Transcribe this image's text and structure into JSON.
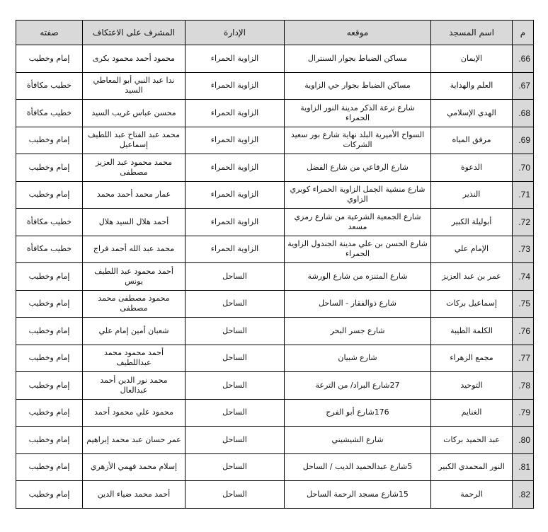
{
  "headers": [
    "م",
    "اسم المسجد",
    "موقعه",
    "الإدارة",
    "المشرف على الاعتكاف",
    "صفته"
  ],
  "rows": [
    {
      "num": "66.",
      "mosque": "الإيمان",
      "location": "مساكن الضباط بجوار السنترال",
      "admin": "الزاوية الحمراء",
      "supervisor": "محمود أحمد محمود بكرى",
      "role": "إمام وخطيب"
    },
    {
      "num": "67.",
      "mosque": "العلم والهداية",
      "location": "مساكن الضباط بجوار حي الزاوية",
      "admin": "الزاوية الحمراء",
      "supervisor": "ندا عبد النبي أبو المعاطي السيد",
      "role": "خطيب مكافأة"
    },
    {
      "num": "68.",
      "mosque": "الهدي الإسلامي",
      "location": "شارع ترعة الذكر مدينة النور الزاوية الحمراء",
      "admin": "الزاوية الحمراء",
      "supervisor": "محسن عباس غريب السيد",
      "role": "خطيب مكافأة"
    },
    {
      "num": "69.",
      "mosque": "مرفق المياه",
      "location": "السواح الأميرية البلد نهاية شارع بور سعيد الشركات",
      "admin": "الزاوية الحمراء",
      "supervisor": "محمد عبد الفتاح عبد اللطيف إسماعيل",
      "role": "إمام وخطيب"
    },
    {
      "num": "70.",
      "mosque": "الدعوة",
      "location": "شارع الرفاعي من شارع الفضل",
      "admin": "الزاوية الحمراء",
      "supervisor": "محمد محمود عبد العزيز مصطفى",
      "role": "إمام وخطيب"
    },
    {
      "num": "71.",
      "mosque": "النذير",
      "location": "شارع منشية الجمل الزاوية الحمراء كوبري الزاوي",
      "admin": "الزاوية الحمراء",
      "supervisor": "عمار محمد أحمد محمد",
      "role": "إمام وخطيب"
    },
    {
      "num": "72.",
      "mosque": "أبوليلة الكبير",
      "location": "شارع الجمعية الشرعية من شارع رمزي مسعد",
      "admin": "الزاوية الحمراء",
      "supervisor": "أحمد هلال السيد هلال",
      "role": "خطيب مكافأة"
    },
    {
      "num": "73.",
      "mosque": "الإمام علي",
      "location": "شارع الحسن بن علي مدينة الجندول الزاوية الحمراء",
      "admin": "الزاوية الحمراء",
      "supervisor": "محمد عبد الله أحمد فراج",
      "role": "خطيب مكافأة"
    },
    {
      "num": "74.",
      "mosque": "عمر بن عبد العزيز",
      "location": "شارع المتنزه من شارع الورشة",
      "admin": "الساحل",
      "supervisor": "أحمد محمود عبد اللطيف يونس",
      "role": "إمام وخطيب"
    },
    {
      "num": "75.",
      "mosque": "إسماعيل بركات",
      "location": "شارع ذوالفقار - الساحل",
      "admin": "الساحل",
      "supervisor": "محمود مصطفى محمد مصطفى",
      "role": "إمام وخطيب"
    },
    {
      "num": "76.",
      "mosque": "الكلمة الطيبة",
      "location": "شارع جسر البحر",
      "admin": "الساحل",
      "supervisor": "شعبان أمين إمام علي",
      "role": "إمام وخطيب"
    },
    {
      "num": "77.",
      "mosque": "مجمع الزهراء",
      "location": "شارع شبيان",
      "admin": "الساحل",
      "supervisor": "أحمد محمود محمد عبداللطيف",
      "role": "إمام وخطيب"
    },
    {
      "num": "78.",
      "mosque": "التوحيد",
      "location": "27شارع البراد/ من الترعة",
      "admin": "الساحل",
      "supervisor": "محمد نور الدين أحمد عبدالعال",
      "role": "إمام وخطيب"
    },
    {
      "num": "79.",
      "mosque": "الغنايم",
      "location": "176شارع أبو الفرج",
      "admin": "الساحل",
      "supervisor": "محمود علي محمود أحمد",
      "role": "إمام وخطيب"
    },
    {
      "num": "80.",
      "mosque": "عبد الحميد بركات",
      "location": "شارع الشيشيني",
      "admin": "الساحل",
      "supervisor": "عمر حسان عبد محمد إبراهيم",
      "role": "إمام وخطيب"
    },
    {
      "num": "81.",
      "mosque": "النور المحمدي الكبير",
      "location": "5شارع عبدالحميد الديب / الساحل",
      "admin": "الساحل",
      "supervisor": "إسلام محمد فهمي الأزهري",
      "role": "إمام وخطيب"
    },
    {
      "num": "82.",
      "mosque": "الرحمة",
      "location": "15شارع مسجد الرحمة الساحل",
      "admin": "الساحل",
      "supervisor": "أحمد محمد ضياء الدين",
      "role": "إمام وخطيب"
    }
  ]
}
